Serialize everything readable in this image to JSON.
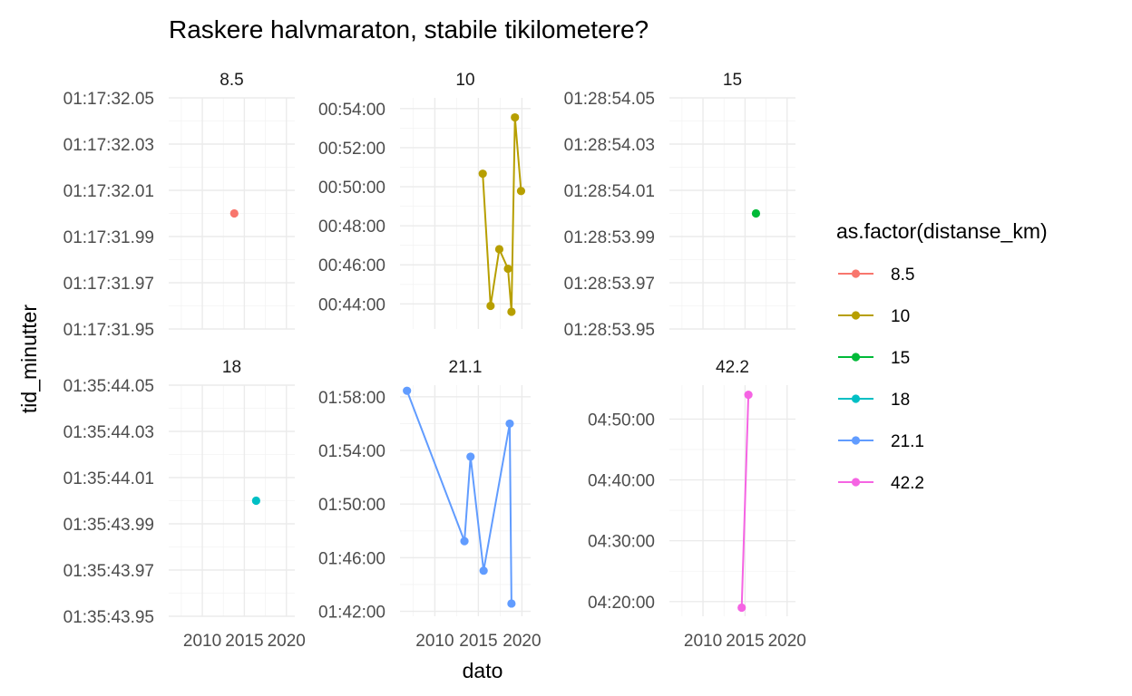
{
  "chart_data": {
    "type": "line",
    "title": "Raskere halvmaraton, stabile tikilometere?",
    "xlabel": "dato",
    "ylabel": "tid_minutter",
    "grid": true,
    "legend": {
      "title": "as.factor(distanse_km)",
      "placement": "right",
      "entries": [
        {
          "label": "8.5",
          "color": "#F8766D"
        },
        {
          "label": "10",
          "color": "#B79F00"
        },
        {
          "label": "15",
          "color": "#00BA38"
        },
        {
          "label": "18",
          "color": "#00BFC4"
        },
        {
          "label": "21.1",
          "color": "#619CFF"
        },
        {
          "label": "42.2",
          "color": "#F564E3"
        }
      ]
    },
    "xlim": [
      2006,
      2021
    ],
    "x_ticks": [
      2010,
      2015,
      2020
    ],
    "x_tick_labels": [
      "2010",
      "2015",
      "2020"
    ],
    "panels": [
      {
        "label": "8.5",
        "color": "#F8766D",
        "ylim": [
          4651.95,
          4652.05
        ],
        "y_ticks": [
          4651.95,
          4651.97,
          4651.99,
          4652.01,
          4652.03,
          4652.05
        ],
        "y_tick_labels": [
          "01:17:31.95",
          "01:17:31.97",
          "01:17:31.99",
          "01:17:32.01",
          "01:17:32.03",
          "01:17:32.05"
        ],
        "points": [
          {
            "x": 2013.8,
            "y": 4652.0
          }
        ]
      },
      {
        "label": "10",
        "color": "#B79F00",
        "ylim": [
          2563,
          3273
        ],
        "y_ticks": [
          2640,
          2760,
          2880,
          3000,
          3120,
          3240
        ],
        "y_tick_labels": [
          "00:44:00",
          "00:46:00",
          "00:48:00",
          "00:50:00",
          "00:52:00",
          "00:54:00"
        ],
        "points": [
          {
            "x": 2015.5,
            "y": 3040
          },
          {
            "x": 2016.4,
            "y": 2634
          },
          {
            "x": 2017.4,
            "y": 2808
          },
          {
            "x": 2018.4,
            "y": 2748
          },
          {
            "x": 2018.8,
            "y": 2616
          },
          {
            "x": 2019.2,
            "y": 3213
          },
          {
            "x": 2019.9,
            "y": 2987
          }
        ]
      },
      {
        "label": "15",
        "color": "#00BA38",
        "ylim": [
          5333.95,
          5334.05
        ],
        "y_ticks": [
          5333.95,
          5333.97,
          5333.99,
          5334.01,
          5334.03,
          5334.05
        ],
        "y_tick_labels": [
          "01:28:53.95",
          "01:28:53.97",
          "01:28:53.99",
          "01:28:54.01",
          "01:28:54.03",
          "01:28:54.05"
        ],
        "points": [
          {
            "x": 2016.3,
            "y": 5334.0
          }
        ]
      },
      {
        "label": "18",
        "color": "#00BFC4",
        "ylim": [
          5743.95,
          5744.05
        ],
        "y_ticks": [
          5743.95,
          5743.97,
          5743.99,
          5744.01,
          5744.03,
          5744.05
        ],
        "y_tick_labels": [
          "01:35:43.95",
          "01:35:43.97",
          "01:35:43.99",
          "01:35:44.01",
          "01:35:44.03",
          "01:35:44.05"
        ],
        "points": [
          {
            "x": 2016.4,
            "y": 5744.0
          }
        ]
      },
      {
        "label": "21.1",
        "color": "#619CFF",
        "ylim": [
          6098,
          7132
        ],
        "y_ticks": [
          6120,
          6360,
          6600,
          6840,
          7080
        ],
        "y_tick_labels": [
          "01:42:00",
          "01:46:00",
          "01:50:00",
          "01:54:00",
          "01:58:00"
        ],
        "points": [
          {
            "x": 2006.8,
            "y": 7107
          },
          {
            "x": 2013.4,
            "y": 6434
          },
          {
            "x": 2014.1,
            "y": 6812
          },
          {
            "x": 2015.6,
            "y": 6302
          },
          {
            "x": 2018.6,
            "y": 6960
          },
          {
            "x": 2018.8,
            "y": 6155
          }
        ]
      },
      {
        "label": "42.2",
        "color": "#F564E3",
        "ylim": [
          15455,
          17735
        ],
        "y_ticks": [
          15600,
          16200,
          16800,
          17400
        ],
        "y_tick_labels": [
          "04:20:00",
          "04:30:00",
          "04:40:00",
          "04:50:00"
        ],
        "points": [
          {
            "x": 2014.6,
            "y": 15540
          },
          {
            "x": 2015.4,
            "y": 17640
          }
        ]
      }
    ]
  }
}
